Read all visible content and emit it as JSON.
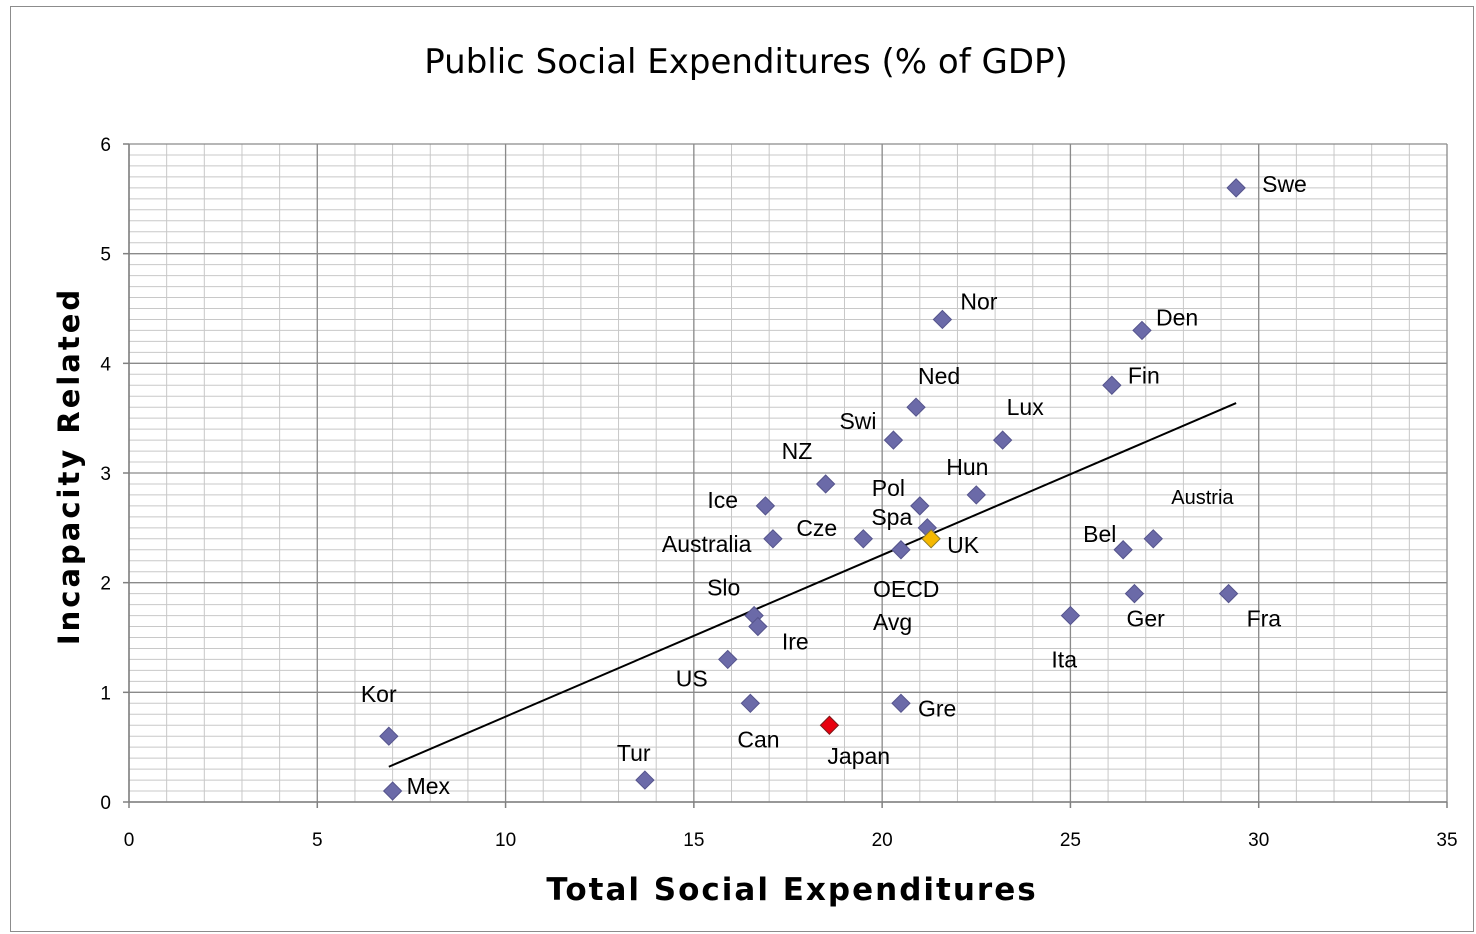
{
  "chart_data": {
    "type": "scatter",
    "title": "Public Social Expenditures (% of GDP)",
    "xlabel": "Total Social Expenditures",
    "ylabel": "Incapacity Related",
    "xlim": [
      0,
      35
    ],
    "ylim": [
      0,
      6
    ],
    "xticks": [
      0,
      5,
      10,
      15,
      20,
      25,
      30,
      35
    ],
    "yticks": [
      0,
      1,
      2,
      3,
      4,
      5,
      6
    ],
    "grid": true,
    "legend": "none",
    "colors": {
      "default": "#6b6aa8",
      "highlight_uk": "#f5b800",
      "highlight_japan": "#e8000f"
    },
    "points": [
      {
        "label": "Swe",
        "x": 29.4,
        "y": 5.6
      },
      {
        "label": "Nor",
        "x": 21.6,
        "y": 4.4
      },
      {
        "label": "Den",
        "x": 26.9,
        "y": 4.3
      },
      {
        "label": "Fin",
        "x": 26.1,
        "y": 3.8
      },
      {
        "label": "Ned",
        "x": 20.9,
        "y": 3.6
      },
      {
        "label": "Lux",
        "x": 23.2,
        "y": 3.3
      },
      {
        "label": "Swi",
        "x": 20.3,
        "y": 3.3
      },
      {
        "label": "NZ",
        "x": 18.5,
        "y": 2.9
      },
      {
        "label": "Hun",
        "x": 22.5,
        "y": 2.8
      },
      {
        "label": "Pol",
        "x": 21.0,
        "y": 2.7
      },
      {
        "label": "Ice",
        "x": 16.9,
        "y": 2.7
      },
      {
        "label": "Spa",
        "x": 21.2,
        "y": 2.5
      },
      {
        "label": "Cze",
        "x": 19.5,
        "y": 2.4
      },
      {
        "label": "Australia",
        "x": 17.1,
        "y": 2.4
      },
      {
        "label": "UK",
        "x": 21.3,
        "y": 2.4,
        "highlight": "uk"
      },
      {
        "label": "OECD Avg",
        "x": 20.5,
        "y": 2.3
      },
      {
        "label": "Austria",
        "x": 27.2,
        "y": 2.4
      },
      {
        "label": "Bel",
        "x": 26.4,
        "y": 2.3
      },
      {
        "label": "Ger",
        "x": 26.7,
        "y": 1.9
      },
      {
        "label": "Fra",
        "x": 29.2,
        "y": 1.9
      },
      {
        "label": "Ita",
        "x": 25.0,
        "y": 1.7
      },
      {
        "label": "Slo",
        "x": 16.6,
        "y": 1.7
      },
      {
        "label": "Ire",
        "x": 16.7,
        "y": 1.6
      },
      {
        "label": "US",
        "x": 15.9,
        "y": 1.3
      },
      {
        "label": "Can",
        "x": 16.5,
        "y": 0.9
      },
      {
        "label": "Gre",
        "x": 20.5,
        "y": 0.9
      },
      {
        "label": "Japan",
        "x": 18.6,
        "y": 0.7,
        "highlight": "japan"
      },
      {
        "label": "Kor",
        "x": 6.9,
        "y": 0.6
      },
      {
        "label": "Tur",
        "x": 13.7,
        "y": 0.2
      },
      {
        "label": "Mex",
        "x": 7.0,
        "y": 0.1
      }
    ],
    "trendline": {
      "type": "linear",
      "x_start": 6.9,
      "x_end": 29.4
    }
  }
}
